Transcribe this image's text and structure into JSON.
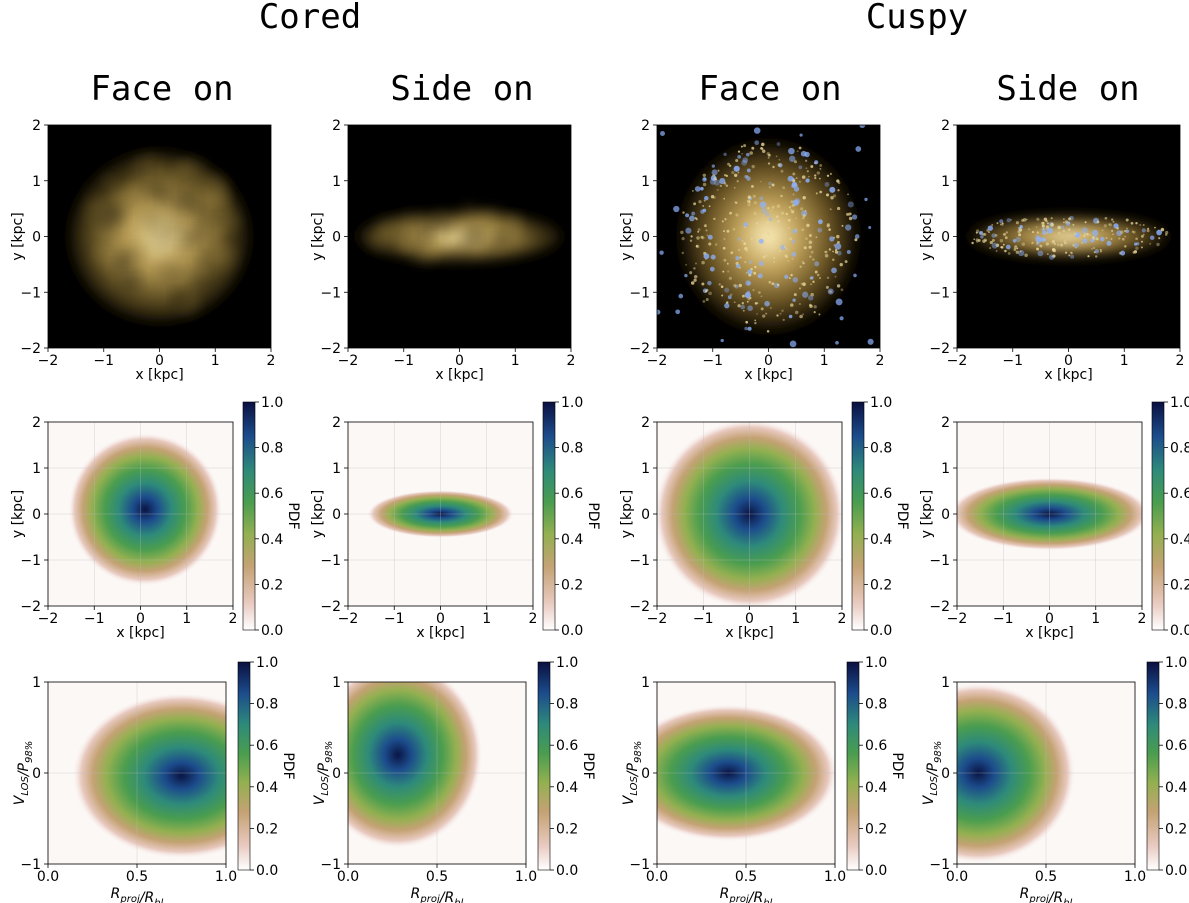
{
  "group_titles": [
    "Cored",
    "Cuspy"
  ],
  "column_titles": [
    "Face on",
    "Side on",
    "Face on",
    "Side on"
  ],
  "colorbar": {
    "label": "PDF",
    "ticks": [
      "0.0",
      "0.2",
      "0.4",
      "0.6",
      "0.8",
      "1.0"
    ]
  },
  "colors": {
    "gist_earth_low": "#ffffff",
    "gist_earth_mid": "#4a9d4f",
    "gist_earth_high": "#0a1860",
    "star_tint": "#e8d79a",
    "young_star": "#8fb3ff"
  },
  "chart_data": [
    {
      "type": "heatmap",
      "panel": "Cored Face on",
      "row": "stellar image",
      "xlabel": "x [kpc]",
      "ylabel": "y [kpc]",
      "xlim": [
        -2,
        2
      ],
      "ylim": [
        -2,
        2
      ],
      "xticks": [
        "−2",
        "−1",
        "0",
        "1",
        "2"
      ],
      "yticks": [
        "−2",
        "−1",
        "0",
        "1",
        "2"
      ]
    },
    {
      "type": "heatmap",
      "panel": "Cored Side on",
      "row": "stellar image",
      "xlabel": "x [kpc]",
      "ylabel": "y [kpc]",
      "xlim": [
        -2,
        2
      ],
      "ylim": [
        -2,
        2
      ],
      "xticks": [
        "−2",
        "−1",
        "0",
        "1",
        "2"
      ],
      "yticks": [
        "−2",
        "−1",
        "0",
        "1",
        "2"
      ]
    },
    {
      "type": "heatmap",
      "panel": "Cuspy Face on",
      "row": "stellar image",
      "xlabel": "x [kpc]",
      "ylabel": "y [kpc]",
      "xlim": [
        -2,
        2
      ],
      "ylim": [
        -2,
        2
      ],
      "xticks": [
        "−2",
        "−1",
        "0",
        "1",
        "2"
      ],
      "yticks": [
        "−2",
        "−1",
        "0",
        "1",
        "2"
      ]
    },
    {
      "type": "heatmap",
      "panel": "Cuspy Side on",
      "row": "stellar image",
      "xlabel": "x [kpc]",
      "ylabel": "y [kpc]",
      "xlim": [
        -2,
        2
      ],
      "ylim": [
        -2,
        2
      ],
      "xticks": [
        "−2",
        "−1",
        "0",
        "1",
        "2"
      ],
      "yticks": [
        "−2",
        "−1",
        "0",
        "1",
        "2"
      ]
    },
    {
      "type": "heatmap",
      "panel": "Cored Face on",
      "row": "spatial PDF",
      "xlabel": "x [kpc]",
      "ylabel": "y [kpc]",
      "xlim": [
        -2,
        2
      ],
      "ylim": [
        -2,
        2
      ],
      "xticks": [
        "−2",
        "−1",
        "0",
        "1",
        "2"
      ],
      "yticks": [
        "−2",
        "−1",
        "0",
        "1",
        "2"
      ],
      "clim": [
        0,
        1
      ],
      "peak": [
        0.1,
        0.1
      ]
    },
    {
      "type": "heatmap",
      "panel": "Cored Side on",
      "row": "spatial PDF",
      "xlabel": "x [kpc]",
      "ylabel": "y [kpc]",
      "xlim": [
        -2,
        2
      ],
      "ylim": [
        -2,
        2
      ],
      "xticks": [
        "−2",
        "−1",
        "0",
        "1",
        "2"
      ],
      "yticks": [
        "−2",
        "−1",
        "0",
        "1",
        "2"
      ],
      "clim": [
        0,
        1
      ],
      "peak": [
        0.0,
        0.0
      ]
    },
    {
      "type": "heatmap",
      "panel": "Cuspy Face on",
      "row": "spatial PDF",
      "xlabel": "x [kpc]",
      "ylabel": "y [kpc]",
      "xlim": [
        -2,
        2
      ],
      "ylim": [
        -2,
        2
      ],
      "xticks": [
        "−2",
        "−1",
        "0",
        "1",
        "2"
      ],
      "yticks": [
        "−2",
        "−1",
        "0",
        "1",
        "2"
      ],
      "clim": [
        0,
        1
      ],
      "peak": [
        0.0,
        0.0
      ]
    },
    {
      "type": "heatmap",
      "panel": "Cuspy Side on",
      "row": "spatial PDF",
      "xlabel": "x [kpc]",
      "ylabel": "y [kpc]",
      "xlim": [
        -2,
        2
      ],
      "ylim": [
        -2,
        2
      ],
      "xticks": [
        "−2",
        "−1",
        "0",
        "1",
        "2"
      ],
      "yticks": [
        "−2",
        "−1",
        "0",
        "1",
        "2"
      ],
      "clim": [
        0,
        1
      ],
      "peak": [
        0.0,
        0.0
      ]
    },
    {
      "type": "heatmap",
      "panel": "Cored Face on",
      "row": "phase-space PDF",
      "xlabel": "R_proj/R_hl",
      "ylabel": "V_LOS/P_98%",
      "xlim": [
        0,
        1
      ],
      "ylim": [
        -1,
        1
      ],
      "xticks": [
        "0.0",
        "0.5",
        "1.0"
      ],
      "yticks": [
        "−1",
        "0",
        "1"
      ],
      "clim": [
        0,
        1
      ],
      "peak": [
        0.75,
        -0.03
      ]
    },
    {
      "type": "heatmap",
      "panel": "Cored Side on",
      "row": "phase-space PDF",
      "xlabel": "R_proj/R_hl",
      "ylabel": "V_LOS/P_98%",
      "xlim": [
        0,
        1
      ],
      "ylim": [
        -1,
        1
      ],
      "xticks": [
        "0.0",
        "0.5",
        "1.0"
      ],
      "yticks": [
        "−1",
        "0",
        "1"
      ],
      "clim": [
        0,
        1
      ],
      "peak": [
        0.28,
        0.2
      ]
    },
    {
      "type": "heatmap",
      "panel": "Cuspy Face on",
      "row": "phase-space PDF",
      "xlabel": "R_proj/R_hl",
      "ylabel": "V_LOS/P_98%",
      "xlim": [
        0,
        1
      ],
      "ylim": [
        -1,
        1
      ],
      "xticks": [
        "0.0",
        "0.5",
        "1.0"
      ],
      "yticks": [
        "−1",
        "0",
        "1"
      ],
      "clim": [
        0,
        1
      ],
      "peak": [
        0.4,
        0.0
      ]
    },
    {
      "type": "heatmap",
      "panel": "Cuspy Side on",
      "row": "phase-space PDF",
      "xlabel": "R_proj/R_hl",
      "ylabel": "V_LOS/P_98%",
      "xlim": [
        0,
        1
      ],
      "ylim": [
        -1,
        1
      ],
      "xticks": [
        "0.0",
        "0.5",
        "1.0"
      ],
      "yticks": [
        "−1",
        "0",
        "1"
      ],
      "clim": [
        0,
        1
      ],
      "peak": [
        0.12,
        0.0
      ]
    }
  ]
}
